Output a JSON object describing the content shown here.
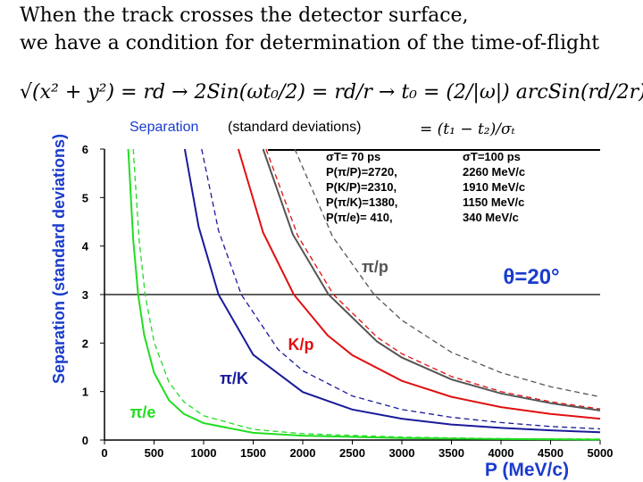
{
  "header": {
    "line1": "When the track crosses the detector surface,",
    "line2": "we have a condition for determination of the time-of-flight",
    "formula": "√(x² + y²) = rd → 2Sin(ωt₀/2) = rd/r → t₀ = (2/|ω|) arcSin(rd/2r)"
  },
  "chart_data": {
    "type": "line",
    "subtitle": {
      "term": "Separation",
      "rest": "(standard deviations)",
      "formula": "=  (t₁ − t₂)/σₜ"
    },
    "x_label": "P (MeV/c)",
    "y_label": "Separation (standard deviations)",
    "xlim": [
      0,
      5000
    ],
    "xticks": [
      0,
      500,
      1000,
      1500,
      2000,
      2500,
      3000,
      3500,
      4000,
      4500,
      5000
    ],
    "ylim": [
      0,
      6
    ],
    "yticks": [
      0,
      1,
      2,
      3,
      4,
      5,
      6
    ],
    "reference_line": 3,
    "annotation": "θ=20°",
    "legend_table": {
      "header": [
        "σT= 70 ps",
        "σT=100 ps"
      ],
      "rows": [
        [
          "P(π/P)=2720,",
          "2260 MeV/c"
        ],
        [
          "P(K/P)=2310,",
          "1910 MeV/c"
        ],
        [
          "P(π/K)=1380,",
          "1150 MeV/c"
        ],
        [
          "P(π/e)= 410,",
          "340 MeV/c"
        ]
      ]
    },
    "series": [
      {
        "name": "π/e",
        "color": "#22dd22",
        "x": [
          240,
          290,
          340,
          400,
          500,
          650,
          800,
          1000,
          1500,
          2000,
          3000,
          4000,
          5000
        ],
        "values": [
          6,
          4.12,
          3,
          2.17,
          1.39,
          0.82,
          0.54,
          0.35,
          0.15,
          0.09,
          0.04,
          0.02,
          0.01
        ],
        "dashed": {
          "x": [
            290,
            350,
            410,
            500,
            650,
            800,
            1000,
            1500,
            2000,
            3000,
            4000,
            5000
          ],
          "values": [
            6,
            4.12,
            3,
            2.02,
            1.19,
            0.79,
            0.5,
            0.22,
            0.13,
            0.06,
            0.03,
            0.02
          ]
        }
      },
      {
        "name": "π/K",
        "color": "#1a1a9a",
        "x": [
          810,
          950,
          1150,
          1500,
          2000,
          2500,
          3000,
          3500,
          4000,
          4500,
          5000
        ],
        "values": [
          6,
          4.4,
          3,
          1.76,
          0.99,
          0.63,
          0.44,
          0.32,
          0.25,
          0.2,
          0.16
        ],
        "dashed": {
          "x": [
            980,
            1150,
            1380,
            1750,
            2000,
            2500,
            3000,
            3500,
            4000,
            4500,
            5000
          ],
          "values": [
            6,
            4.32,
            3,
            1.87,
            1.43,
            0.91,
            0.63,
            0.47,
            0.36,
            0.28,
            0.23
          ]
        }
      },
      {
        "name": "K/p",
        "color": "#e01010",
        "x": [
          1350,
          1600,
          1910,
          2250,
          2500,
          3000,
          3500,
          4000,
          4500,
          5000
        ],
        "values": [
          6,
          4.28,
          3,
          2.16,
          1.75,
          1.22,
          0.89,
          0.68,
          0.54,
          0.44
        ],
        "dashed": {
          "x": [
            1630,
            1950,
            2310,
            2750,
            3000,
            3500,
            4000,
            4500,
            5000
          ],
          "values": [
            6,
            4.21,
            3,
            2.12,
            1.78,
            1.31,
            1.0,
            0.79,
            0.64
          ]
        }
      },
      {
        "name": "π/p",
        "color": "#555555",
        "x": [
          1600,
          1900,
          2260,
          2750,
          3000,
          3500,
          4000,
          4500,
          5000
        ],
        "values": [
          6,
          4.24,
          3,
          2.03,
          1.7,
          1.25,
          0.96,
          0.76,
          0.61
        ],
        "dashed": {
          "x": [
            1920,
            2300,
            2720,
            3000,
            3500,
            4000,
            4500,
            5000
          ],
          "values": [
            6,
            4.2,
            3,
            2.47,
            1.81,
            1.39,
            1.1,
            0.89
          ]
        }
      }
    ]
  }
}
